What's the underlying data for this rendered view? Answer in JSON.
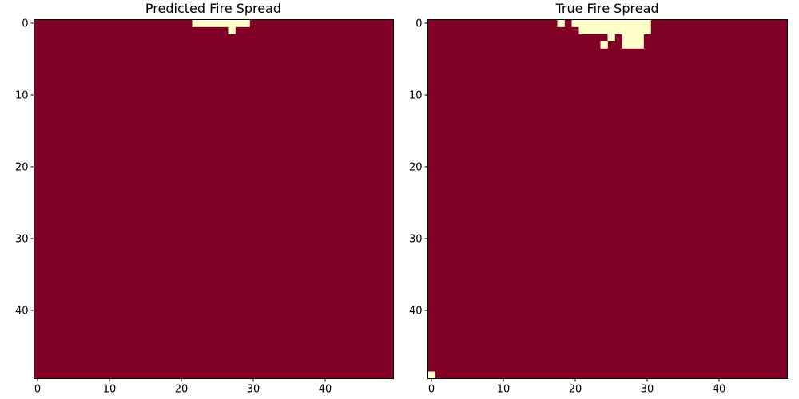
{
  "chart_data": [
    {
      "type": "heatmap",
      "title": "Predicted Fire Spread",
      "grid_size": [
        50,
        50
      ],
      "xlim": [
        -0.5,
        49.5
      ],
      "ylim": [
        49.5,
        -0.5
      ],
      "xticks": [
        0,
        10,
        20,
        30,
        40
      ],
      "yticks": [
        0,
        10,
        20,
        30,
        40
      ],
      "colors": {
        "background": "#800026",
        "highlight": "#ffffcc"
      },
      "highlight_cells_row_col": [
        [
          0,
          22
        ],
        [
          0,
          23
        ],
        [
          0,
          24
        ],
        [
          0,
          25
        ],
        [
          0,
          26
        ],
        [
          0,
          27
        ],
        [
          0,
          28
        ],
        [
          0,
          29
        ],
        [
          1,
          27
        ]
      ]
    },
    {
      "type": "heatmap",
      "title": "True Fire Spread",
      "grid_size": [
        50,
        50
      ],
      "xlim": [
        -0.5,
        49.5
      ],
      "ylim": [
        49.5,
        -0.5
      ],
      "xticks": [
        0,
        10,
        20,
        30,
        40
      ],
      "yticks": [
        0,
        10,
        20,
        30,
        40
      ],
      "colors": {
        "background": "#800026",
        "highlight": "#ffffcc"
      },
      "highlight_cells_row_col": [
        [
          0,
          18
        ],
        [
          0,
          20
        ],
        [
          0,
          21
        ],
        [
          0,
          22
        ],
        [
          0,
          23
        ],
        [
          0,
          24
        ],
        [
          0,
          25
        ],
        [
          0,
          26
        ],
        [
          0,
          27
        ],
        [
          0,
          28
        ],
        [
          0,
          29
        ],
        [
          0,
          30
        ],
        [
          1,
          21
        ],
        [
          1,
          22
        ],
        [
          1,
          23
        ],
        [
          1,
          24
        ],
        [
          1,
          25
        ],
        [
          1,
          26
        ],
        [
          1,
          27
        ],
        [
          1,
          28
        ],
        [
          1,
          29
        ],
        [
          1,
          30
        ],
        [
          2,
          25
        ],
        [
          2,
          27
        ],
        [
          2,
          28
        ],
        [
          2,
          29
        ],
        [
          3,
          24
        ],
        [
          3,
          27
        ],
        [
          3,
          28
        ],
        [
          3,
          29
        ],
        [
          49,
          0
        ]
      ]
    }
  ]
}
